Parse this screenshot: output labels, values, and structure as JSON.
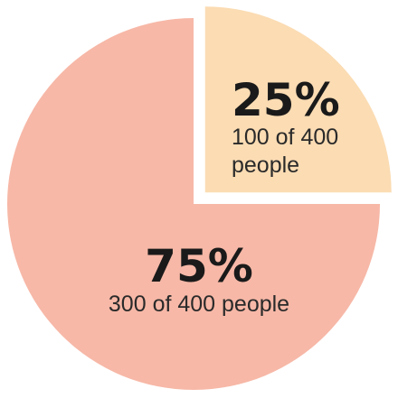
{
  "chart_data": {
    "type": "pie",
    "slices": [
      {
        "percent_label": "75%",
        "value": 300,
        "percent": 75,
        "line1": "300 of 400 people",
        "line2": "",
        "color": "#f7b8a7"
      },
      {
        "percent_label": "25%",
        "value": 100,
        "percent": 25,
        "line1": "100 of 400",
        "line2": "people",
        "color": "#fbdcb3"
      }
    ],
    "total": 400
  }
}
